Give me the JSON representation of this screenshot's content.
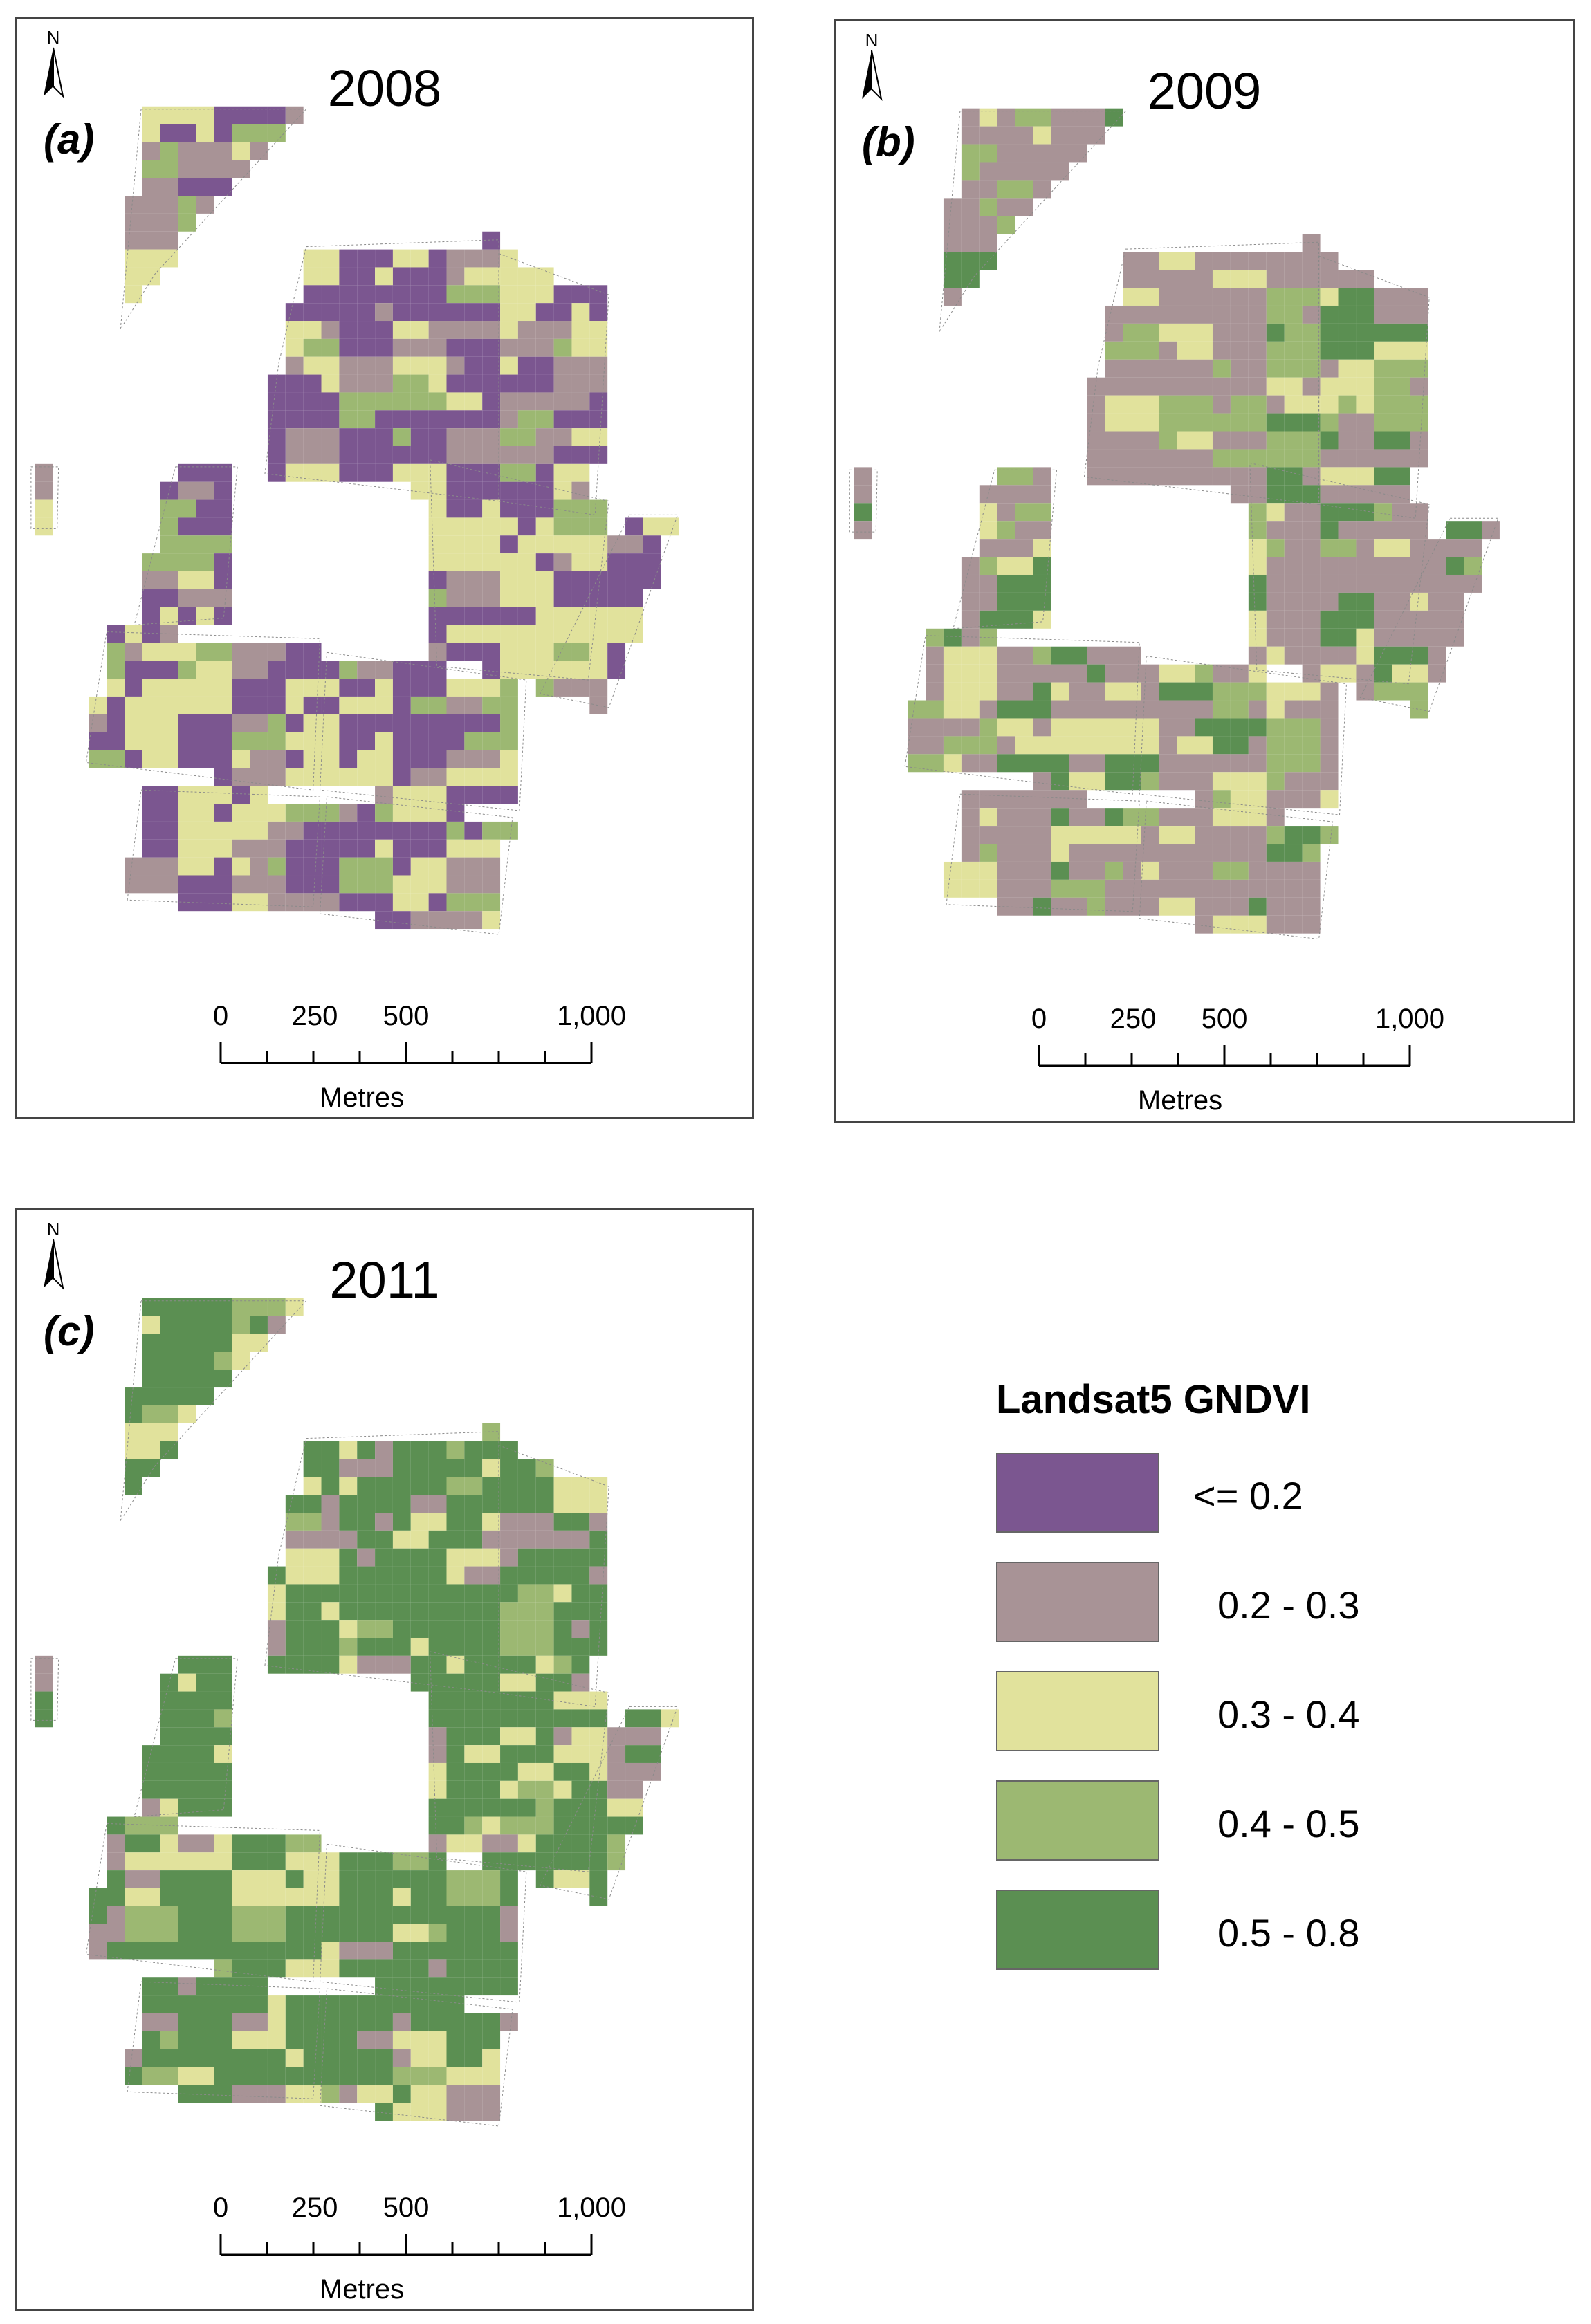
{
  "figure": {
    "panels": [
      {
        "id": "a",
        "year": "2008",
        "letter": "(a)",
        "north": "N"
      },
      {
        "id": "b",
        "year": "2009",
        "letter": "(b)",
        "north": "N"
      },
      {
        "id": "c",
        "year": "2011",
        "letter": "(c)",
        "north": "N"
      }
    ],
    "scalebar": {
      "labels": [
        "0",
        "250",
        "500",
        "1,000"
      ],
      "unit": "Metres"
    },
    "legend": {
      "title": "Landsat5 GNDVI",
      "classes": [
        {
          "label": "<= 0.2",
          "color": "#7b5690"
        },
        {
          "label": "0.2 - 0.3",
          "color": "#a89396"
        },
        {
          "label": "0.3 - 0.4",
          "color": "#e1e29c"
        },
        {
          "label": "0.4 - 0.5",
          "color": "#9cb872"
        },
        {
          "label": "0.5 - 0.8",
          "color": "#5b8f52"
        }
      ]
    },
    "panel_dominant_classes": {
      "a": [
        "<= 0.2",
        "0.2 - 0.3",
        "0.3 - 0.4",
        "0.4 - 0.5"
      ],
      "b": [
        "0.2 - 0.3",
        "0.3 - 0.4",
        "0.4 - 0.5",
        "0.5 - 0.8"
      ],
      "c": [
        "0.5 - 0.8",
        "0.3 - 0.4",
        "0.2 - 0.3",
        "0.4 - 0.5"
      ]
    }
  }
}
